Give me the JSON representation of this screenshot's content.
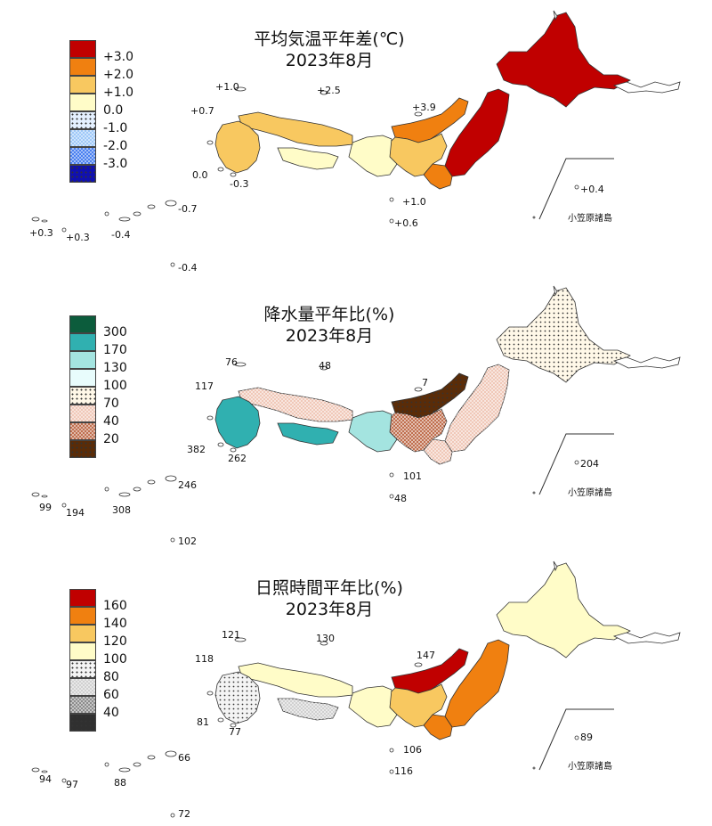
{
  "panels": [
    {
      "title": "平均気温平年差(℃)",
      "month": "2023年8月",
      "legend": [
        {
          "label": "+3.0",
          "color": "#c00000",
          "pattern": "solid"
        },
        {
          "label": "+2.0",
          "color": "#f08010",
          "pattern": "solid"
        },
        {
          "label": "+1.0",
          "color": "#f8c860",
          "pattern": "solid"
        },
        {
          "label": "0.0",
          "color": "#fffcc8",
          "pattern": "solid"
        },
        {
          "label": "-1.0",
          "color": "#e4f0ff",
          "pattern": "dots"
        },
        {
          "label": "-2.0",
          "color": "#9ec8f8",
          "pattern": "check"
        },
        {
          "label": "-3.0",
          "color": "#4a80f0",
          "pattern": "check"
        },
        {
          "label": "",
          "color": "#1010b0",
          "pattern": "dots"
        }
      ],
      "region_colors": {
        "hokkaido": "#c00000",
        "tohoku": "#c00000",
        "kanto": "#f08010",
        "chubu": "#f8c860",
        "hokuriku": "#f08010",
        "kinki": "#fffcc8",
        "chugoku": "#f8c860",
        "shikoku": "#fffcc8",
        "kyushu": "#f8c860"
      },
      "station_values": [
        "+1.0",
        "+2.5",
        "+3.9",
        "+0.7",
        "0.0",
        "-0.3",
        "+1.0",
        "+0.6",
        "+0.4",
        "+0.3",
        "+0.3",
        "-0.4",
        "-0.7",
        "-0.4"
      ],
      "ogasawara_label": "小笠原諸島"
    },
    {
      "title": "降水量平年比(%)",
      "month": "2023年8月",
      "legend": [
        {
          "label": "300",
          "color": "#0c5c3c",
          "pattern": "solid"
        },
        {
          "label": "170",
          "color": "#30b0b0",
          "pattern": "solid"
        },
        {
          "label": "130",
          "color": "#a4e4e0",
          "pattern": "solid"
        },
        {
          "label": "100",
          "color": "#e8fcfc",
          "pattern": "solid"
        },
        {
          "label": "70",
          "color": "#fff8e8",
          "pattern": "dots"
        },
        {
          "label": "40",
          "color": "#f0c8b8",
          "pattern": "check"
        },
        {
          "label": "20",
          "color": "#c07050",
          "pattern": "check"
        },
        {
          "label": "",
          "color": "#5a2c08",
          "pattern": "dots"
        }
      ],
      "region_colors": {
        "hokkaido": "#fff8e8",
        "tohoku": "#f0c8b8",
        "kanto": "#f0c8b8",
        "chubu": "#c07050",
        "hokuriku": "#5a2c08",
        "kinki": "#a4e4e0",
        "chugoku": "#f0c8b8",
        "shikoku": "#30b0b0",
        "kyushu": "#30b0b0"
      },
      "station_values": [
        "76",
        "48",
        "7",
        "117",
        "382",
        "262",
        "101",
        "48",
        "204",
        "99",
        "194",
        "308",
        "246",
        "102"
      ],
      "ogasawara_label": "小笠原諸島"
    },
    {
      "title": "日照時間平年比(%)",
      "month": "2023年8月",
      "legend": [
        {
          "label": "160",
          "color": "#c00000",
          "pattern": "solid"
        },
        {
          "label": "140",
          "color": "#f08010",
          "pattern": "solid"
        },
        {
          "label": "120",
          "color": "#f8c860",
          "pattern": "solid"
        },
        {
          "label": "100",
          "color": "#fffcc8",
          "pattern": "solid"
        },
        {
          "label": "80",
          "color": "#f4f4f4",
          "pattern": "dots"
        },
        {
          "label": "60",
          "color": "#d0d0d0",
          "pattern": "check"
        },
        {
          "label": "40",
          "color": "#8c8c8c",
          "pattern": "check"
        },
        {
          "label": "",
          "color": "#303030",
          "pattern": "dots"
        }
      ],
      "region_colors": {
        "hokkaido": "#fffcc8",
        "tohoku": "#f08010",
        "kanto": "#f08010",
        "chubu": "#f8c860",
        "hokuriku": "#c00000",
        "kinki": "#fffcc8",
        "chugoku": "#fffcc8",
        "shikoku": "#d0d0d0",
        "kyushu": "#f4f4f4"
      },
      "station_values": [
        "121",
        "130",
        "147",
        "118",
        "81",
        "77",
        "106",
        "116",
        "89",
        "94",
        "97",
        "88",
        "66",
        "72"
      ],
      "ogasawara_label": "小笠原諸島"
    }
  ]
}
